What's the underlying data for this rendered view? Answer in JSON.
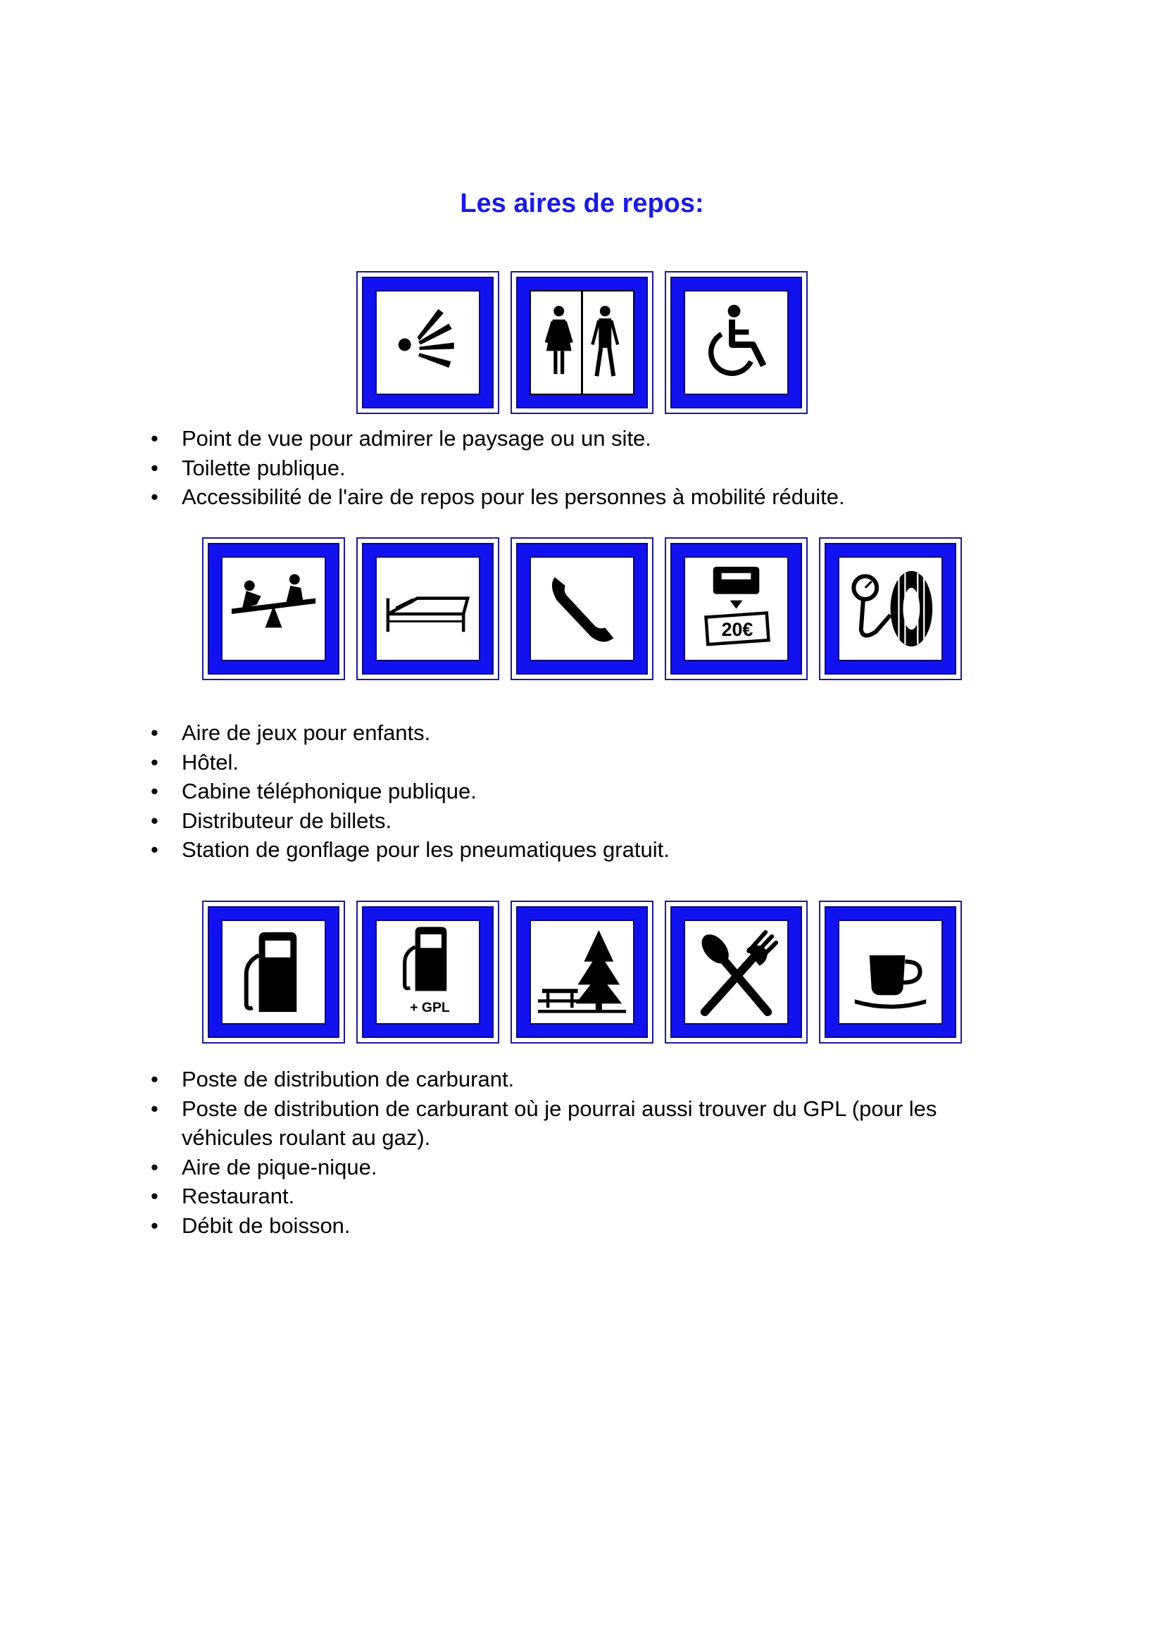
{
  "title": "Les aires de repos:",
  "colors": {
    "title": "#1a1ae0",
    "sign_border": "#1212f0",
    "sign_dark": "#0a0a7a"
  },
  "groups": [
    {
      "signs": [
        "viewpoint-icon",
        "toilets-icon",
        "wheelchair-icon"
      ],
      "items": [
        "Point de vue pour admirer le paysage ou un site.",
        "Toilette publique.",
        "Accessibilité de l'aire de repos pour les personnes à mobilité réduite."
      ]
    },
    {
      "signs": [
        "playground-icon",
        "bed-icon",
        "phone-icon",
        "cash-dispenser-icon",
        "tire-pressure-icon"
      ],
      "cash_label": "20€",
      "items": [
        "Aire de jeux pour enfants.",
        "Hôtel.",
        "Cabine téléphonique publique.",
        "Distributeur de billets.",
        "Station de gonflage pour les pneumatiques gratuit."
      ]
    },
    {
      "signs": [
        "fuel-pump-icon",
        "fuel-pump-gpl-icon",
        "picnic-icon",
        "restaurant-icon",
        "coffee-cup-icon"
      ],
      "gpl_label": "+ GPL",
      "items": [
        "Poste de distribution de carburant.",
        "Poste de distribution de carburant où je pourrai aussi trouver du GPL (pour les véhicules roulant au gaz).",
        "Aire de pique-nique.",
        "Restaurant.",
        "Débit de boisson."
      ]
    }
  ]
}
